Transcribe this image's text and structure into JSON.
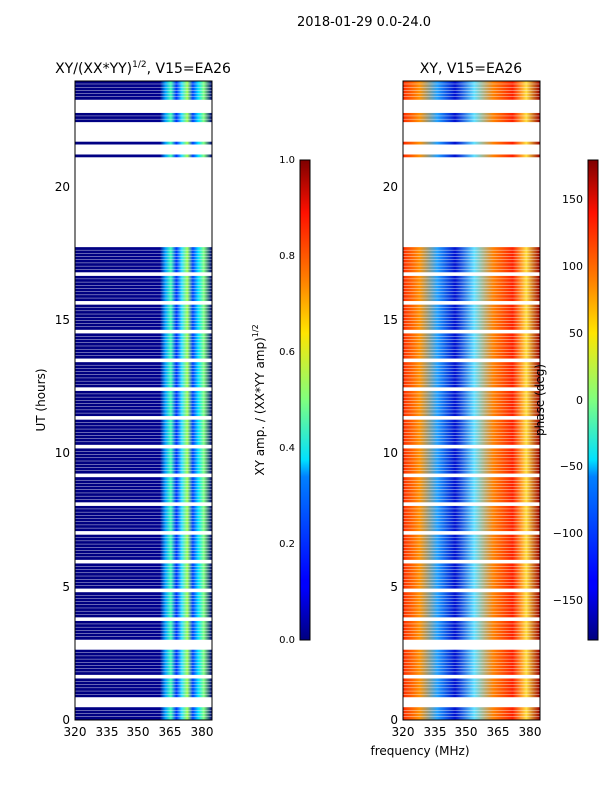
{
  "figure": {
    "suptitle": "2018-01-29 0.0-24.0",
    "xlabel": "frequency (MHz)"
  },
  "chart_data": [
    {
      "type": "heatmap",
      "title": "XY/(XX*YY)",
      "title_exponent": "1/2",
      "title_suffix": ", V15=EA26",
      "ylabel": "UT (hours)",
      "xlabel": "",
      "xlim": [
        320,
        385
      ],
      "ylim": [
        0,
        24
      ],
      "xticks": [
        "320",
        "335",
        "350",
        "365",
        "380"
      ],
      "yticks": [
        "0",
        "5",
        "10",
        "15",
        "20"
      ],
      "colormap": "jet",
      "data_gaps_hours": [
        [
          0.6,
          0.8
        ],
        [
          2.6,
          2.9
        ],
        [
          17.7,
          20.9
        ],
        [
          21.2,
          21.5
        ],
        [
          21.7,
          22.4
        ],
        [
          22.8,
          23.2
        ]
      ],
      "colorbar": {
        "label": "XY amp. / (XX*YY amp)",
        "label_exponent": "1/2",
        "range": [
          0.0,
          1.0
        ],
        "ticks": [
          "0.0",
          "0.2",
          "0.4",
          "0.6",
          "0.8",
          "1.0"
        ]
      }
    },
    {
      "type": "heatmap",
      "title": "XY, V15=EA26",
      "xlim": [
        320,
        385
      ],
      "ylim": [
        0,
        24
      ],
      "xticks": [
        "320",
        "335",
        "350",
        "365",
        "380"
      ],
      "yticks": [
        "0",
        "5",
        "10",
        "15",
        "20"
      ],
      "colormap": "jet",
      "colorbar": {
        "label": "phase (deg)",
        "range": [
          -180,
          180
        ],
        "ticks": [
          "−150",
          "−100",
          "−50",
          "0",
          "50",
          "100",
          "150"
        ]
      }
    }
  ]
}
